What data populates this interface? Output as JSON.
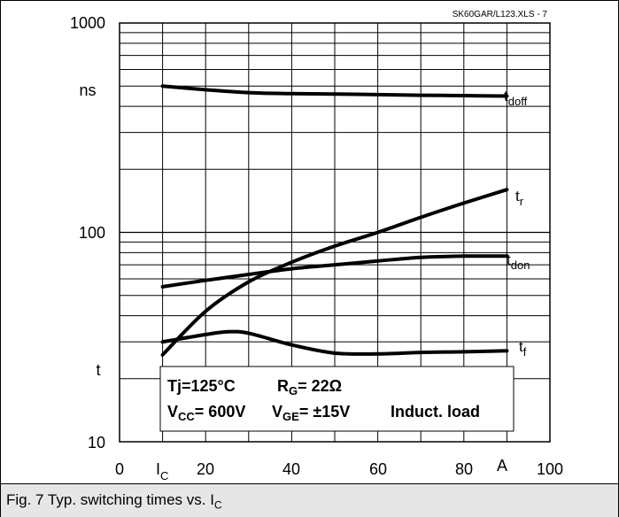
{
  "chart_data": {
    "type": "line",
    "title": "",
    "source_note": "SK60GAR/L123.XLS - 7",
    "xlabel": "I",
    "xlabel_sub": "C",
    "xunit": "A",
    "ylabel": "t",
    "yunit": "ns",
    "xlim": [
      0,
      100
    ],
    "ylim": [
      10,
      1000
    ],
    "y_scale": "log",
    "grid": true,
    "x_ticks": [
      "0",
      "20",
      "40",
      "60",
      "80",
      "100"
    ],
    "y_ticks": [
      "10",
      "100",
      "1000"
    ],
    "series": [
      {
        "name": "t",
        "name_sub": "doff",
        "x": [
          10,
          20,
          30,
          40,
          50,
          60,
          70,
          80,
          90
        ],
        "y": [
          500,
          480,
          465,
          460,
          458,
          455,
          452,
          450,
          448
        ]
      },
      {
        "name": "t",
        "name_sub": "r",
        "x": [
          10,
          20,
          30,
          40,
          50,
          60,
          70,
          80,
          90
        ],
        "y": [
          26,
          42,
          58,
          72,
          86,
          100,
          118,
          138,
          160
        ]
      },
      {
        "name": "t",
        "name_sub": "don",
        "x": [
          10,
          20,
          30,
          40,
          50,
          60,
          70,
          80,
          90
        ],
        "y": [
          55,
          59,
          63,
          67,
          70,
          73,
          76,
          77,
          77
        ]
      },
      {
        "name": "t",
        "name_sub": "f",
        "x": [
          10,
          20,
          25,
          30,
          40,
          50,
          60,
          70,
          80,
          90
        ],
        "y": [
          30,
          32.5,
          33.5,
          33,
          29,
          26.5,
          26.3,
          26.7,
          26.9,
          27.2
        ]
      }
    ],
    "conditions": {
      "tj": "Tj=125°C",
      "rg_main": "R",
      "rg_sub": "G",
      "rg_val": "= 22Ω",
      "vcc_main": "V",
      "vcc_sub": "CC",
      "vcc_val": "= 600V",
      "vge_main": "V",
      "vge_sub": "GE",
      "vge_val": "= ±15V",
      "load": "Induct. load"
    }
  },
  "caption": {
    "text": "Fig. 7 Typ. switching times vs. I",
    "sub": "C"
  }
}
